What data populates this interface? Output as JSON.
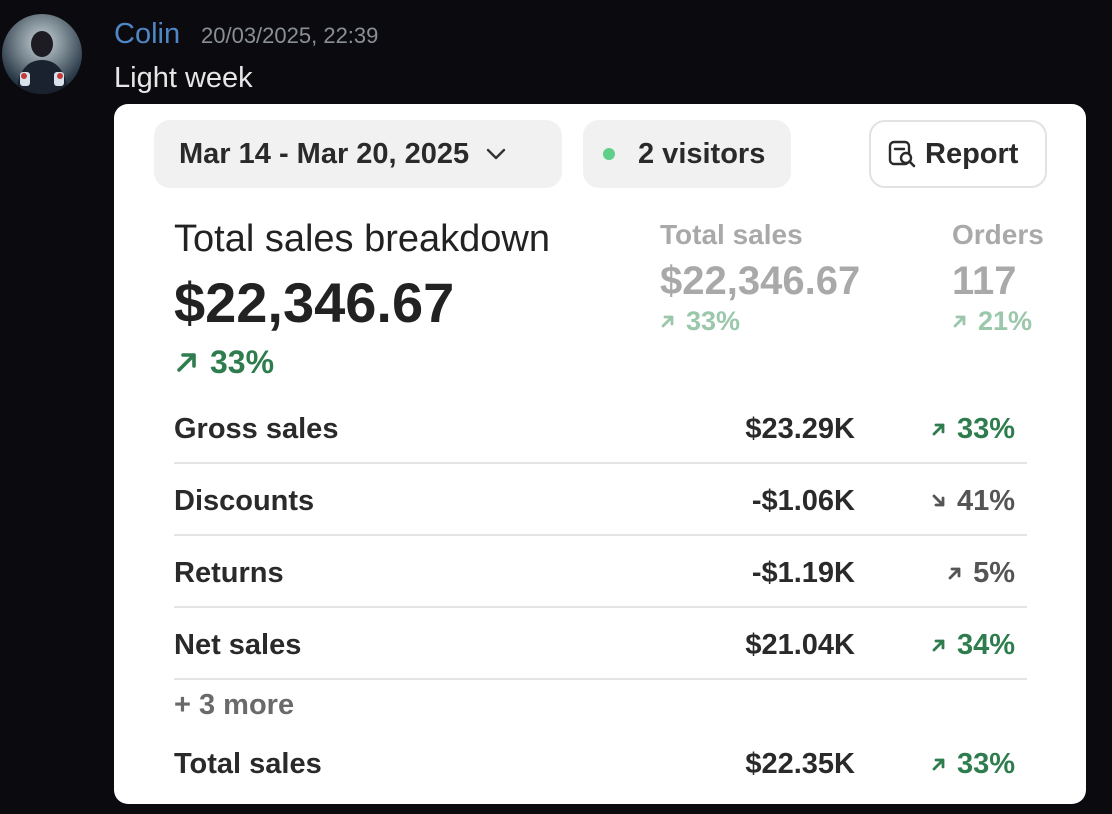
{
  "message": {
    "author": "Colin",
    "timestamp": "20/03/2025, 22:39",
    "text": "Light week"
  },
  "card": {
    "date_range": "Mar 14 - Mar 20, 2025",
    "visitors": "2 visitors",
    "report_label": "Report",
    "breakdown": {
      "title": "Total sales breakdown",
      "amount": "$22,346.67",
      "change": "33%"
    },
    "metrics": [
      {
        "label": "Total sales",
        "value": "$22,346.67",
        "change": "33%"
      },
      {
        "label": "Orders",
        "value": "117",
        "change": "21%"
      }
    ],
    "rows": [
      {
        "name": "Gross sales",
        "value": "$23.29K",
        "change": "33%",
        "direction": "up",
        "color": "#2f7d4f"
      },
      {
        "name": "Discounts",
        "value": "-$1.06K",
        "change": "41%",
        "direction": "down",
        "color": "#555555"
      },
      {
        "name": "Returns",
        "value": "-$1.19K",
        "change": "5%",
        "direction": "up",
        "color": "#555555"
      },
      {
        "name": "Net sales",
        "value": "$21.04K",
        "change": "34%",
        "direction": "up",
        "color": "#2f7d4f"
      }
    ],
    "more_label": "+ 3 more",
    "total": {
      "name": "Total sales",
      "value": "$22.35K",
      "change": "33%",
      "direction": "up",
      "color": "#2f7d4f"
    }
  },
  "colors": {
    "author": "#4f86c6",
    "positive": "#2f7d4f",
    "positive_muted": "#9bc7ab",
    "visitor_dot": "#5fd08a"
  }
}
